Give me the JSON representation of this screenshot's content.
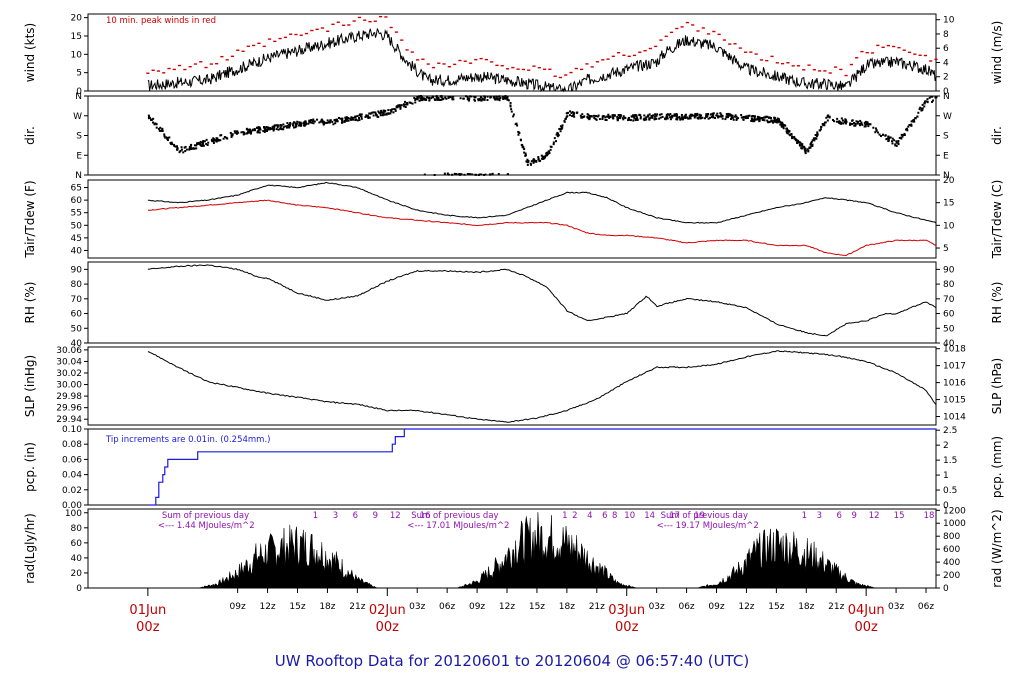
{
  "title": "UW Rooftop Data for 20120601  to  20120604 @ 06:57:40  (UTC)",
  "colors": {
    "trace": "#000000",
    "accent": "#d00000",
    "precip": "#1a1ae0",
    "rad_text": "#9010b0",
    "title": "#1a1aa8",
    "day": "#c00000"
  },
  "chart_data": [
    {
      "type": "line",
      "id": "wind",
      "ylabel": "wind (kts)",
      "ylabel_right": "wind (m/s)",
      "ylim": [
        0,
        21
      ],
      "ylim_right": [
        0,
        10.8
      ],
      "yticks": [
        0,
        5,
        10,
        15,
        20
      ],
      "yticks_right": [
        0,
        2,
        4,
        6,
        8,
        10
      ],
      "annotation": "10 min. peak winds in red",
      "x": [
        0,
        6,
        9,
        12,
        15,
        18,
        21,
        23,
        24,
        26,
        28,
        30,
        33,
        36,
        38,
        40,
        42,
        44,
        48,
        51,
        52,
        54,
        57,
        60,
        63,
        66,
        68,
        70,
        72,
        75,
        78,
        79
      ],
      "series": [
        {
          "name": "",
          "values": [
            1.5,
            3,
            6,
            9,
            11,
            13,
            15,
            16,
            15,
            8,
            3,
            3,
            4,
            3,
            2,
            1,
            0,
            3,
            6,
            8,
            11,
            14,
            12,
            6,
            4,
            2,
            2,
            1,
            7,
            8,
            6,
            4
          ]
        }
      ]
    },
    {
      "type": "scatter",
      "id": "dir",
      "ylabel": "dir.",
      "ylabel_right": "dir.",
      "ylim": [
        0,
        360
      ],
      "yticks": [
        "N",
        "E",
        "S",
        "W",
        "N"
      ],
      "yticks_right": [
        "N",
        "E",
        "S",
        "W",
        "N"
      ],
      "x": [
        0,
        3,
        6,
        9,
        12,
        14,
        16,
        18,
        20,
        21,
        24,
        27,
        30,
        33,
        36,
        38,
        40,
        42,
        44,
        48,
        51,
        54,
        57,
        60,
        63,
        66,
        68,
        70,
        72,
        75,
        78,
        79
      ],
      "series": [
        {
          "name": "",
          "values": [
            270,
            110,
            150,
            195,
            210,
            225,
            240,
            240,
            255,
            262,
            285,
            350,
            355,
            350,
            355,
            50,
            90,
            280,
            265,
            260,
            265,
            265,
            270,
            258,
            250,
            105,
            260,
            240,
            230,
            140,
            340,
            350
          ]
        }
      ]
    },
    {
      "type": "line",
      "id": "temp",
      "ylabel": "Tair/Tdew (F)",
      "ylabel_right": "Tair/Tdew (C)",
      "ylim": [
        37,
        68
      ],
      "ylim_right": [
        2.8,
        20
      ],
      "yticks": [
        40,
        45,
        50,
        55,
        60,
        65
      ],
      "yticks_right": [
        5,
        10,
        15,
        20
      ],
      "x": [
        0,
        3,
        6,
        9,
        12,
        15,
        18,
        21,
        24,
        27,
        30,
        33,
        36,
        38,
        40,
        42,
        44,
        46,
        48,
        51,
        54,
        57,
        60,
        63,
        66,
        68,
        70,
        72,
        75,
        78,
        79
      ],
      "series": [
        {
          "name": "",
          "values": [
            60,
            59,
            60,
            62,
            66,
            65,
            67,
            65,
            60,
            56,
            54,
            53,
            54,
            57,
            60,
            63,
            63,
            61,
            57,
            53,
            51,
            51,
            54,
            57,
            59,
            61,
            60,
            59,
            55,
            52,
            51
          ]
        },
        {
          "name": "",
          "values": [
            56,
            57,
            58,
            59,
            60,
            58,
            57,
            55,
            53,
            52,
            51,
            50,
            51,
            51,
            51,
            50,
            47,
            46,
            46,
            45,
            43,
            44,
            44,
            42,
            42,
            39,
            38,
            42,
            44,
            44,
            42
          ]
        }
      ]
    },
    {
      "type": "line",
      "id": "rh",
      "ylabel": "RH (%)",
      "ylabel_right": "RH (%)",
      "ylim": [
        40,
        95
      ],
      "yticks": [
        40,
        50,
        60,
        70,
        80,
        90
      ],
      "yticks_right": [
        40,
        50,
        60,
        70,
        80,
        90
      ],
      "x": [
        0,
        3,
        6,
        9,
        11,
        12,
        15,
        18,
        21,
        24,
        27,
        30,
        33,
        36,
        38,
        40,
        42,
        44,
        48,
        50,
        51,
        54,
        57,
        60,
        63,
        66,
        68,
        70,
        72,
        74,
        75,
        78,
        79
      ],
      "series": [
        {
          "name": "",
          "values": [
            90,
            92,
            93,
            90,
            85,
            84,
            74,
            69,
            72,
            82,
            89,
            89,
            88,
            90,
            85,
            78,
            62,
            55,
            60,
            72,
            65,
            70,
            68,
            64,
            53,
            47,
            45,
            53,
            55,
            60,
            60,
            68,
            64
          ]
        }
      ]
    },
    {
      "type": "line",
      "id": "slp",
      "ylabel": "SLP (inHg)",
      "ylabel_right": "SLP (hPa)",
      "ylim": [
        29.93,
        30.065
      ],
      "ylim_right": [
        1013.5,
        1018.1
      ],
      "yticks": [
        29.94,
        29.96,
        29.98,
        30.0,
        30.02,
        30.04,
        30.06
      ],
      "yticks_right": [
        1014,
        1015,
        1016,
        1017,
        1018
      ],
      "x": [
        0,
        3,
        6,
        9,
        12,
        15,
        18,
        21,
        24,
        27,
        30,
        33,
        36,
        39,
        42,
        45,
        48,
        51,
        54,
        57,
        60,
        63,
        66,
        69,
        72,
        75,
        78,
        79
      ],
      "series": [
        {
          "name": "",
          "values": [
            30.058,
            30.03,
            30.005,
            29.995,
            29.985,
            29.978,
            29.97,
            29.966,
            29.955,
            29.955,
            29.948,
            29.94,
            29.935,
            29.942,
            29.955,
            29.975,
            30.005,
            30.03,
            30.03,
            30.035,
            30.048,
            30.058,
            30.055,
            30.05,
            30.04,
            30.02,
            29.99,
            29.965
          ]
        }
      ]
    },
    {
      "type": "line",
      "id": "pcp",
      "ylabel": "pcp. (in)",
      "ylabel_right": "pcp. (mm)",
      "ylim": [
        0,
        0.1
      ],
      "ylim_right": [
        0,
        2.54
      ],
      "yticks": [
        0.0,
        0.02,
        0.04,
        0.06,
        0.08,
        0.1
      ],
      "yticks_right": [
        0,
        0.5,
        1,
        1.5,
        2,
        2.5
      ],
      "annotation": "Tip increments are 0.01in. (0.254mm.)",
      "x": [
        0,
        0.8,
        0.8,
        1.1,
        1.1,
        1.5,
        1.5,
        1.7,
        1.7,
        2.0,
        2.0,
        5.0,
        5.0,
        24.5,
        24.5,
        24.8,
        24.8,
        25.2,
        25.2,
        25.7,
        25.7,
        79
      ],
      "series": [
        {
          "name": "",
          "values": [
            0,
            0,
            0.01,
            0.01,
            0.03,
            0.03,
            0.04,
            0.04,
            0.05,
            0.05,
            0.06,
            0.06,
            0.07,
            0.07,
            0.08,
            0.08,
            0.09,
            0.09,
            0.09,
            0.09,
            0.1,
            0.1
          ]
        }
      ]
    },
    {
      "type": "area",
      "id": "rad",
      "ylabel": "rad(Lgly/hr)",
      "ylabel_right": "rad (W/m^2)",
      "ylim": [
        0,
        105
      ],
      "ylim_right": [
        0,
        1220
      ],
      "yticks": [
        0,
        20,
        40,
        60,
        80,
        100
      ],
      "yticks_right": [
        0,
        200,
        400,
        600,
        800,
        1000,
        1200
      ],
      "x": [
        5,
        7,
        9,
        11,
        13,
        15,
        17,
        19,
        21,
        23,
        31,
        33,
        35,
        37,
        39,
        41,
        43,
        45,
        47,
        49,
        55,
        57,
        59,
        61,
        63,
        65,
        67,
        69,
        71,
        73
      ],
      "series": [
        {
          "name": "",
          "values": [
            0,
            8,
            28,
            58,
            72,
            80,
            70,
            45,
            15,
            0,
            0,
            12,
            40,
            80,
            95,
            90,
            70,
            40,
            10,
            0,
            0,
            8,
            30,
            65,
            80,
            72,
            55,
            30,
            8,
            0
          ]
        }
      ],
      "annotations": [
        {
          "text": "Sum of previous day",
          "x": 1
        },
        {
          "text": "<--- 1.44 MJoules/m^2",
          "x": 1
        },
        {
          "text": "Sum of previous day",
          "x": 26
        },
        {
          "text": "<--- 17.01 MJoules/m^2",
          "x": 26
        },
        {
          "text": "Sum of previous day",
          "x": 51
        },
        {
          "text": "<--- 19.17 MJoules/m^2",
          "x": 51
        }
      ],
      "hour_labels": [
        {
          "text": "1",
          "x": 16.8
        },
        {
          "text": "3",
          "x": 18.8
        },
        {
          "text": "6",
          "x": 20.8
        },
        {
          "text": "9",
          "x": 22.8
        },
        {
          "text": "12",
          "x": 24.8
        },
        {
          "text": "16",
          "x": 27.8
        },
        {
          "text": "1",
          "x": 41.8
        },
        {
          "text": "2",
          "x": 42.8
        },
        {
          "text": "4",
          "x": 44.3
        },
        {
          "text": "6",
          "x": 45.8
        },
        {
          "text": "8",
          "x": 46.8
        },
        {
          "text": "10",
          "x": 48.3
        },
        {
          "text": "14",
          "x": 50.3
        },
        {
          "text": "17",
          "x": 52.8
        },
        {
          "text": "19",
          "x": 55.3
        },
        {
          "text": "1",
          "x": 65.8
        },
        {
          "text": "3",
          "x": 67.3
        },
        {
          "text": "6",
          "x": 69.3
        },
        {
          "text": "9",
          "x": 70.8
        },
        {
          "text": "12",
          "x": 72.8
        },
        {
          "text": "15",
          "x": 75.3
        },
        {
          "text": "18",
          "x": 78.3
        }
      ]
    }
  ],
  "x_axis": {
    "xlim": [
      -6,
      79
    ],
    "ticks": [
      {
        "label": "09z",
        "x": 9
      },
      {
        "label": "12z",
        "x": 12
      },
      {
        "label": "15z",
        "x": 15
      },
      {
        "label": "18z",
        "x": 18
      },
      {
        "label": "21z",
        "x": 21
      },
      {
        "label": "03z",
        "x": 27
      },
      {
        "label": "06z",
        "x": 30
      },
      {
        "label": "09z",
        "x": 33
      },
      {
        "label": "12z",
        "x": 36
      },
      {
        "label": "15z",
        "x": 39
      },
      {
        "label": "18z",
        "x": 42
      },
      {
        "label": "21z",
        "x": 45
      },
      {
        "label": "03z",
        "x": 51
      },
      {
        "label": "06z",
        "x": 54
      },
      {
        "label": "09z",
        "x": 57
      },
      {
        "label": "12z",
        "x": 60
      },
      {
        "label": "15z",
        "x": 63
      },
      {
        "label": "18z",
        "x": 66
      },
      {
        "label": "21z",
        "x": 69
      },
      {
        "label": "03z",
        "x": 75
      },
      {
        "label": "06z",
        "x": 78
      }
    ],
    "days": [
      {
        "day": "01Jun",
        "hour": "00z",
        "x": 0
      },
      {
        "day": "02Jun",
        "hour": "00z",
        "x": 24
      },
      {
        "day": "03Jun",
        "hour": "00z",
        "x": 48
      },
      {
        "day": "04Jun",
        "hour": "00z",
        "x": 72
      }
    ]
  }
}
